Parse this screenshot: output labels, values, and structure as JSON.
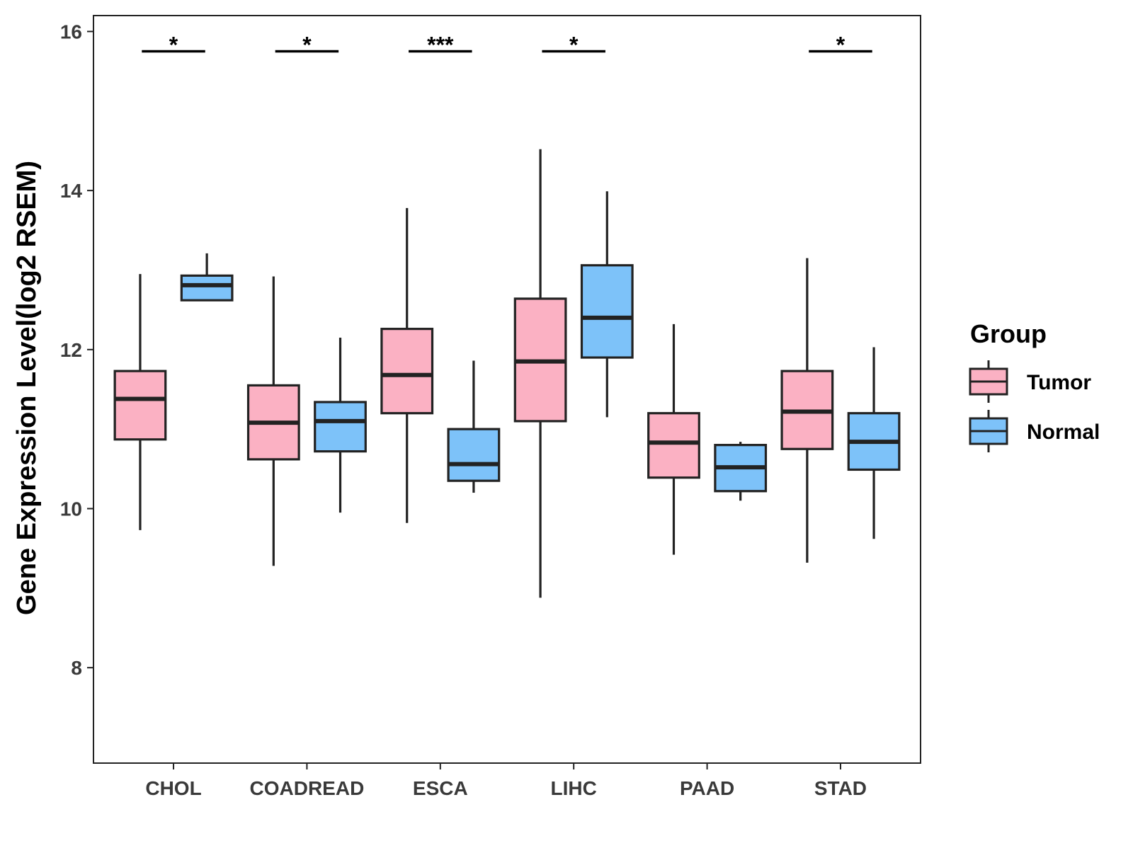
{
  "chart_data": {
    "type": "boxplot",
    "title": "",
    "xlabel": "",
    "ylabel": "Gene Expression Level(log2 RSEM)",
    "ylim": [
      6.8,
      16.2
    ],
    "yticks": [
      8,
      10,
      12,
      14,
      16
    ],
    "grid": false,
    "categories": [
      "CHOL",
      "COADREAD",
      "ESCA",
      "LIHC",
      "PAAD",
      "STAD"
    ],
    "legend": {
      "title": "Group",
      "position": "right",
      "entries": [
        "Tumor",
        "Normal"
      ]
    },
    "series": [
      {
        "name": "Tumor",
        "color": "#FBB1C3",
        "boxes": [
          {
            "category": "CHOL",
            "min": 9.73,
            "q1": 10.87,
            "median": 11.38,
            "q3": 11.73,
            "max": 12.95
          },
          {
            "category": "COADREAD",
            "min": 9.28,
            "q1": 10.62,
            "median": 11.08,
            "q3": 11.55,
            "max": 12.92
          },
          {
            "category": "ESCA",
            "min": 9.82,
            "q1": 11.2,
            "median": 11.68,
            "q3": 12.26,
            "max": 13.78
          },
          {
            "category": "LIHC",
            "min": 8.88,
            "q1": 11.1,
            "median": 11.85,
            "q3": 12.64,
            "max": 14.52
          },
          {
            "category": "PAAD",
            "min": 9.42,
            "q1": 10.39,
            "median": 10.83,
            "q3": 11.2,
            "max": 12.32
          },
          {
            "category": "STAD",
            "min": 9.32,
            "q1": 10.75,
            "median": 11.22,
            "q3": 11.73,
            "max": 13.15
          }
        ]
      },
      {
        "name": "Normal",
        "color": "#7DC2F9",
        "boxes": [
          {
            "category": "CHOL",
            "min": 12.62,
            "q1": 12.62,
            "median": 12.81,
            "q3": 12.93,
            "max": 13.21
          },
          {
            "category": "COADREAD",
            "min": 9.95,
            "q1": 10.72,
            "median": 11.1,
            "q3": 11.34,
            "max": 12.15
          },
          {
            "category": "ESCA",
            "min": 10.2,
            "q1": 10.35,
            "median": 10.56,
            "q3": 11.0,
            "max": 11.86
          },
          {
            "category": "LIHC",
            "min": 11.15,
            "q1": 11.9,
            "median": 12.4,
            "q3": 13.06,
            "max": 13.99
          },
          {
            "category": "PAAD",
            "min": 10.1,
            "q1": 10.22,
            "median": 10.52,
            "q3": 10.8,
            "max": 10.84
          },
          {
            "category": "STAD",
            "min": 9.62,
            "q1": 10.49,
            "median": 10.84,
            "q3": 11.2,
            "max": 12.03
          }
        ]
      }
    ],
    "significance": [
      {
        "category": "CHOL",
        "label": "*"
      },
      {
        "category": "COADREAD",
        "label": "*"
      },
      {
        "category": "ESCA",
        "label": "***"
      },
      {
        "category": "LIHC",
        "label": "*"
      },
      {
        "category": "PAAD",
        "label": ""
      },
      {
        "category": "STAD",
        "label": "*"
      }
    ],
    "significance_y": 15.75
  }
}
